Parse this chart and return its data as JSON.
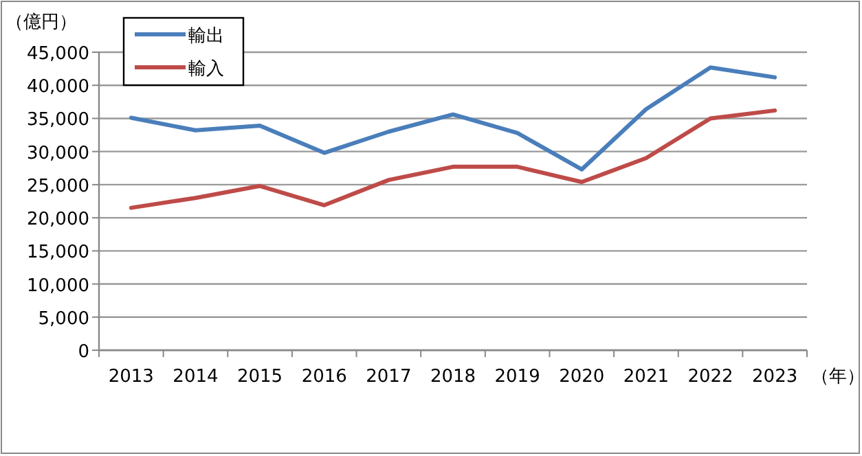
{
  "chart_data": {
    "type": "line",
    "ylabel": "（億円）",
    "xlabel": "（年）",
    "categories": [
      "2013",
      "2014",
      "2015",
      "2016",
      "2017",
      "2018",
      "2019",
      "2020",
      "2021",
      "2022",
      "2023"
    ],
    "series": [
      {
        "name": "輸出",
        "color": "#4a7ebb",
        "values": [
          35100,
          33200,
          33900,
          29800,
          33000,
          35600,
          32800,
          27300,
          36400,
          42700,
          41200
        ]
      },
      {
        "name": "輸入",
        "color": "#be4b48",
        "values": [
          21500,
          23000,
          24800,
          21900,
          25700,
          27700,
          27700,
          25400,
          29000,
          35000,
          36200
        ]
      }
    ],
    "ylim": [
      0,
      45000
    ],
    "yticks": [
      {
        "value": 0,
        "label": "0"
      },
      {
        "value": 5000,
        "label": "5,000"
      },
      {
        "value": 10000,
        "label": "10,000"
      },
      {
        "value": 15000,
        "label": "15,000"
      },
      {
        "value": 20000,
        "label": "20,000"
      },
      {
        "value": 25000,
        "label": "25,000"
      },
      {
        "value": 30000,
        "label": "30,000"
      },
      {
        "value": 35000,
        "label": "35,000"
      },
      {
        "value": 40000,
        "label": "40,000"
      },
      {
        "value": 45000,
        "label": "45,000"
      }
    ],
    "grid": "y",
    "legend": "top left",
    "marker": "none",
    "line_style": "solid"
  }
}
